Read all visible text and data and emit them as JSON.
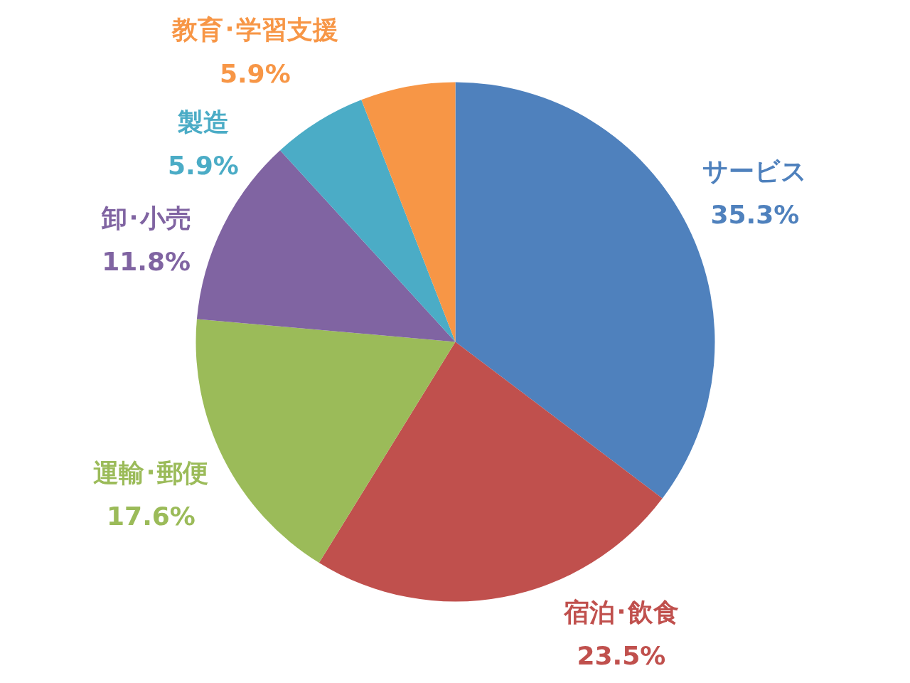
{
  "chart_data": {
    "type": "pie",
    "categories": [
      "サービス",
      "宿泊･飲食",
      "運輸･郵便",
      "卸･小売",
      "製造",
      "教育･学習支援"
    ],
    "values": [
      35.3,
      23.5,
      17.6,
      11.8,
      5.9,
      5.9
    ],
    "colors": [
      "#4f81bd",
      "#c0504d",
      "#9bbb59",
      "#8064a2",
      "#4bacc6",
      "#f79646"
    ],
    "value_labels": [
      "35.3%",
      "23.5%",
      "17.6%",
      "11.8%",
      "5.9%",
      "5.9%"
    ]
  }
}
